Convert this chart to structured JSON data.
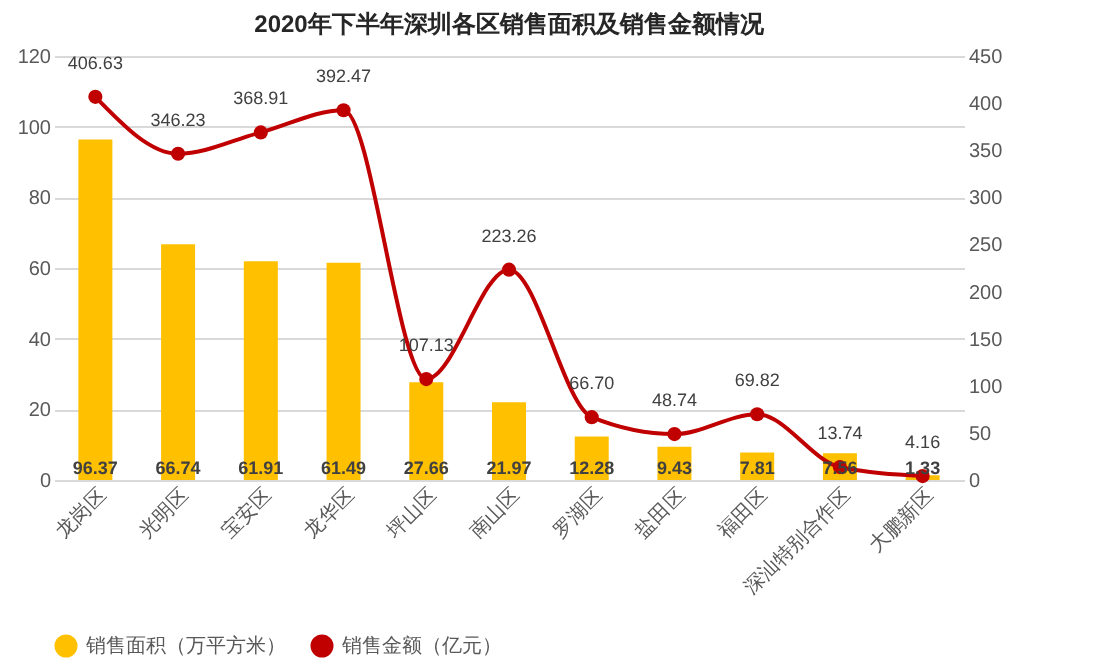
{
  "chart_data": {
    "type": "bar",
    "title": "2020年下半年深圳各区销售面积及销售金额情况",
    "categories": [
      "龙岗区",
      "光明区",
      "宝安区",
      "龙华区",
      "坪山区",
      "南山区",
      "罗湖区",
      "盐田区",
      "福田区",
      "深汕特别合作区",
      "大鹏新区"
    ],
    "series": [
      {
        "name": "销售面积（万平方米）",
        "color": "#ffc000",
        "values": [
          96.37,
          66.74,
          61.91,
          61.49,
          27.66,
          21.97,
          12.28,
          9.43,
          7.81,
          7.56,
          1.33
        ]
      },
      {
        "name": "销售金额（亿元）",
        "type": "line",
        "axis": "y2",
        "color": "#c00000",
        "marker": "circle",
        "values": [
          406.63,
          346.23,
          368.91,
          392.47,
          107.13,
          223.26,
          66.7,
          48.74,
          69.82,
          13.74,
          4.16
        ],
        "value_labels": [
          "406.63",
          "346.23",
          "368.91",
          "392.47",
          "107.13",
          "223.26",
          "66.70",
          "48.74",
          "69.82",
          "13.74",
          "4.16"
        ]
      }
    ],
    "ylim": [
      0,
      120
    ],
    "yticks": [
      0,
      20,
      40,
      60,
      80,
      100,
      120
    ],
    "y2lim": [
      0,
      450
    ],
    "y2ticks": [
      0,
      50,
      100,
      150,
      200,
      250,
      300,
      350,
      400,
      450
    ],
    "grid": "y",
    "legend": "bottom",
    "data_labels": true
  }
}
